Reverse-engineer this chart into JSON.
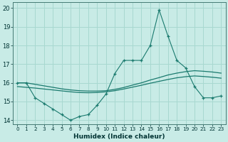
{
  "xlabel": "Humidex (Indice chaleur)",
  "background_color": "#c8ebe6",
  "grid_color": "#a8d8d0",
  "line_color": "#1a7a6e",
  "xlim": [
    -0.5,
    23.5
  ],
  "ylim": [
    13.8,
    20.3
  ],
  "yticks": [
    14,
    15,
    16,
    17,
    18,
    19,
    20
  ],
  "xticks": [
    0,
    1,
    2,
    3,
    4,
    5,
    6,
    7,
    8,
    9,
    10,
    11,
    12,
    13,
    14,
    15,
    16,
    17,
    18,
    19,
    20,
    21,
    22,
    23
  ],
  "x": [
    0,
    1,
    2,
    3,
    4,
    5,
    6,
    7,
    8,
    9,
    10,
    11,
    12,
    13,
    14,
    15,
    16,
    17,
    18,
    19,
    20,
    21,
    22,
    23
  ],
  "y_main": [
    16.0,
    16.0,
    15.2,
    14.9,
    14.6,
    14.3,
    14.0,
    14.2,
    14.3,
    14.8,
    15.4,
    16.5,
    17.2,
    17.2,
    17.2,
    18.0,
    19.9,
    18.5,
    17.2,
    16.8,
    15.8,
    15.2,
    15.2,
    15.3
  ],
  "y_trend1": [
    16.0,
    16.0,
    15.92,
    15.84,
    15.76,
    15.68,
    15.62,
    15.58,
    15.56,
    15.56,
    15.58,
    15.65,
    15.75,
    15.88,
    16.0,
    16.15,
    16.28,
    16.42,
    16.52,
    16.6,
    16.65,
    16.62,
    16.58,
    16.52
  ],
  "y_trend2": [
    15.8,
    15.76,
    15.72,
    15.67,
    15.62,
    15.57,
    15.52,
    15.48,
    15.47,
    15.48,
    15.52,
    15.58,
    15.67,
    15.77,
    15.87,
    15.98,
    16.08,
    16.18,
    16.27,
    16.33,
    16.37,
    16.34,
    16.3,
    16.25
  ]
}
